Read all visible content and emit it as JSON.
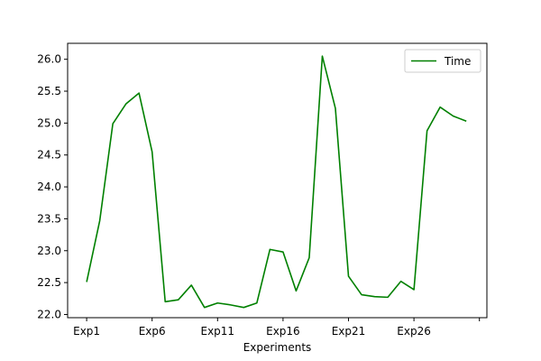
{
  "chart_data": {
    "type": "line",
    "title": "",
    "xlabel": "Experiments",
    "ylabel": "",
    "categories": [
      "Exp1",
      "Exp2",
      "Exp3",
      "Exp4",
      "Exp5",
      "Exp6",
      "Exp7",
      "Exp8",
      "Exp9",
      "Exp10",
      "Exp11",
      "Exp12",
      "Exp13",
      "Exp14",
      "Exp15",
      "Exp16",
      "Exp17",
      "Exp18",
      "Exp19",
      "Exp20",
      "Exp21",
      "Exp22",
      "Exp23",
      "Exp24",
      "Exp25",
      "Exp26",
      "Exp27",
      "Exp28",
      "Exp29",
      "Exp30"
    ],
    "xticks": [
      "Exp1",
      "Exp6",
      "Exp11",
      "Exp16",
      "Exp21",
      "Exp26",
      ""
    ],
    "yticks": [
      "22.0",
      "22.5",
      "23.0",
      "23.5",
      "24.0",
      "24.5",
      "25.0",
      "25.5",
      "26.0"
    ],
    "ylim": [
      21.95,
      26.25
    ],
    "series": [
      {
        "name": "Time",
        "color": "#008000",
        "values": [
          22.51,
          23.47,
          24.99,
          25.3,
          25.47,
          24.55,
          22.2,
          22.23,
          22.46,
          22.11,
          22.18,
          22.15,
          22.11,
          22.18,
          23.02,
          22.98,
          22.37,
          22.89,
          26.05,
          25.23,
          22.6,
          22.31,
          22.28,
          22.27,
          22.52,
          22.39,
          24.88,
          25.25,
          25.11,
          25.03
        ]
      }
    ],
    "legend_position": "top-right",
    "grid": false
  }
}
